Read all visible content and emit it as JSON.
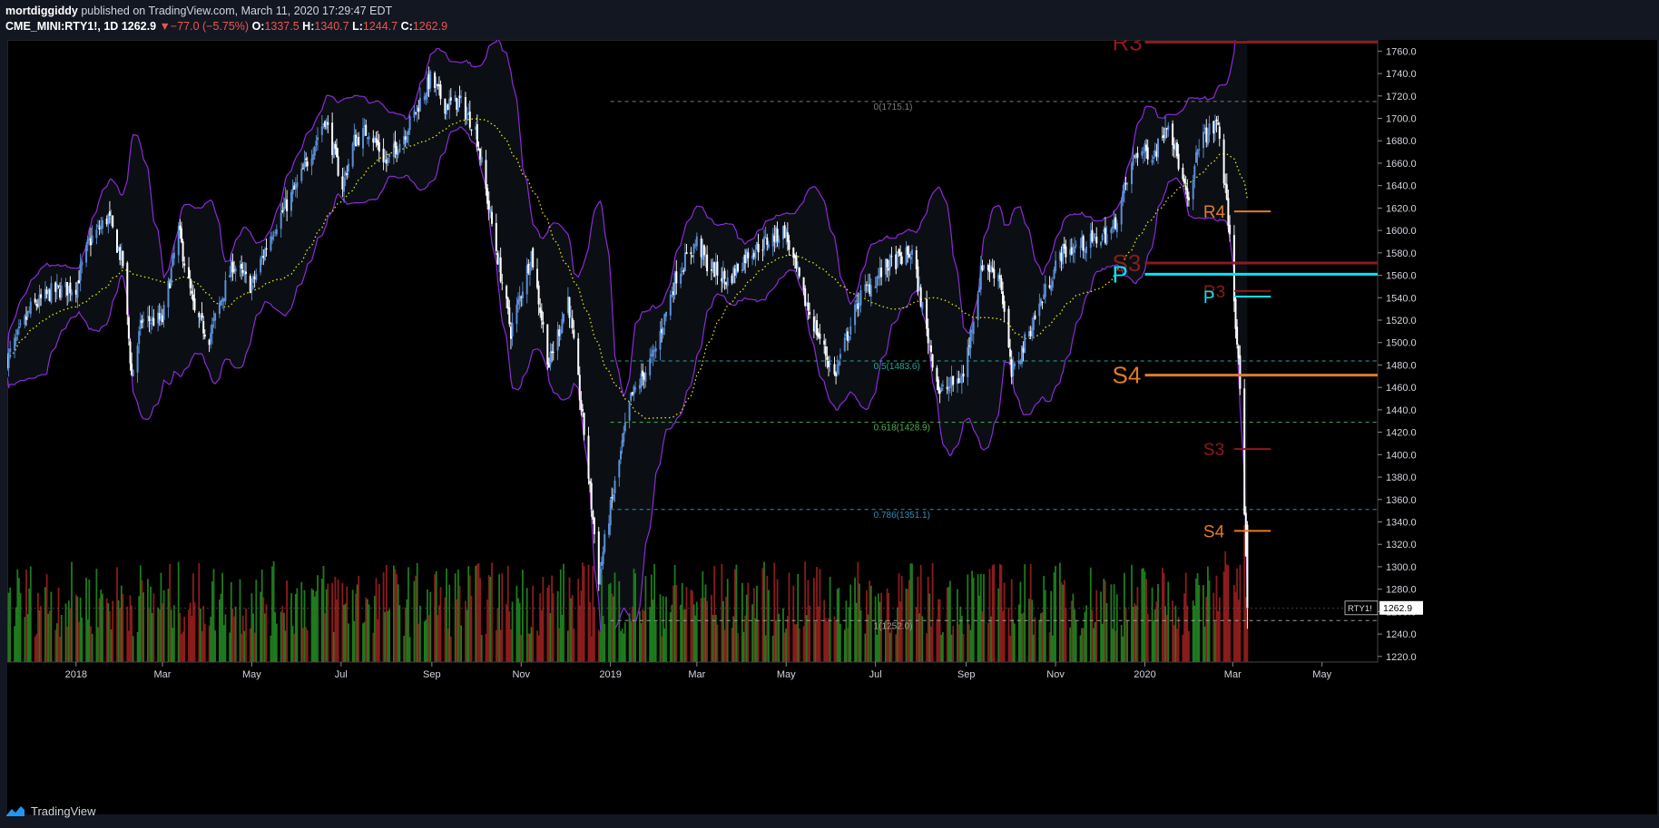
{
  "header": {
    "author": "mortdiggiddy",
    "published": "published on TradingView.com, March 11, 2020 17:29:47 EDT",
    "symbol": "CME_MINI:RTY1!, 1D",
    "last": "1262.9",
    "change_arrow": "▼",
    "change": "−77.0 (−5.75%)",
    "o_label": "O:",
    "o": "1337.5",
    "h_label": "H:",
    "h": "1340.7",
    "l_label": "L:",
    "l": "1244.7",
    "c_label": "C:",
    "c": "1262.9"
  },
  "footer": {
    "brand": "TradingView"
  },
  "colors": {
    "background": "#000000",
    "candle_up": "#5b8fd6",
    "candle_down": "#ffffff",
    "band": "#8b2bd6",
    "ma": "#e6e600",
    "volume_up": "#1e7a1e",
    "volume_down": "#8b1c1c",
    "fib_0": "#7a7a7a",
    "fib_05": "#26a69a",
    "fib_0618": "#4caf50",
    "fib_0786": "#2f8fb8",
    "fib_1": "#9e9e9e",
    "r3": "#8b1a1a",
    "r4": "#e07b28",
    "s3": "#8b1a1a",
    "s4": "#e07b28",
    "pivot": "#00e5ff"
  },
  "chart_data": {
    "type": "candlestick",
    "symbol": "RTY1!",
    "price_axis": {
      "ticks": [
        "1760.0",
        "1740.0",
        "1720.0",
        "1700.0",
        "1680.0",
        "1660.0",
        "1640.0",
        "1620.0",
        "1600.0",
        "1580.0",
        "1560.0",
        "1540.0",
        "1520.0",
        "1500.0",
        "1480.0",
        "1460.0",
        "1440.0",
        "1420.0",
        "1400.0",
        "1380.0",
        "1360.0",
        "1340.0",
        "1320.0",
        "1300.0",
        "1280.0",
        "1260.0",
        "1240.0",
        "1220.0"
      ],
      "ylim": [
        1215,
        1770
      ]
    },
    "time_axis": {
      "ticks": [
        {
          "date": "2018-01-01",
          "label": "2018"
        },
        {
          "date": "2018-03-01",
          "label": "Mar"
        },
        {
          "date": "2018-05-01",
          "label": "May"
        },
        {
          "date": "2018-07-01",
          "label": "Jul"
        },
        {
          "date": "2018-09-01",
          "label": "Sep"
        },
        {
          "date": "2018-11-01",
          "label": "Nov"
        },
        {
          "date": "2019-01-01",
          "label": "2019"
        },
        {
          "date": "2019-03-01",
          "label": "Mar"
        },
        {
          "date": "2019-05-01",
          "label": "May"
        },
        {
          "date": "2019-07-01",
          "label": "Jul"
        },
        {
          "date": "2019-09-01",
          "label": "Sep"
        },
        {
          "date": "2019-11-01",
          "label": "Nov"
        },
        {
          "date": "2020-01-01",
          "label": "2020"
        },
        {
          "date": "2020-03-01",
          "label": "Mar"
        },
        {
          "date": "2020-05-01",
          "label": "May"
        }
      ],
      "xlim": [
        "2017-11-15",
        "2020-06-08"
      ]
    },
    "last_price": {
      "label": "RTY1!",
      "value": "1262.9",
      "y": 1262.9
    },
    "price_path": [
      [
        "2017-11-15",
        1485
      ],
      [
        "2017-12-01",
        1530
      ],
      [
        "2017-12-15",
        1545
      ],
      [
        "2018-01-01",
        1550
      ],
      [
        "2018-01-10",
        1590
      ],
      [
        "2018-01-23",
        1612
      ],
      [
        "2018-02-02",
        1570
      ],
      [
        "2018-02-08",
        1470
      ],
      [
        "2018-02-15",
        1520
      ],
      [
        "2018-03-01",
        1520
      ],
      [
        "2018-03-12",
        1600
      ],
      [
        "2018-03-23",
        1525
      ],
      [
        "2018-04-02",
        1505
      ],
      [
        "2018-04-18",
        1570
      ],
      [
        "2018-05-01",
        1550
      ],
      [
        "2018-05-15",
        1600
      ],
      [
        "2018-06-01",
        1640
      ],
      [
        "2018-06-20",
        1700
      ],
      [
        "2018-07-02",
        1640
      ],
      [
        "2018-07-10",
        1680
      ],
      [
        "2018-07-20",
        1690
      ],
      [
        "2018-08-01",
        1660
      ],
      [
        "2018-08-15",
        1690
      ],
      [
        "2018-08-31",
        1735
      ],
      [
        "2018-09-10",
        1712
      ],
      [
        "2018-09-20",
        1715
      ],
      [
        "2018-10-01",
        1690
      ],
      [
        "2018-10-10",
        1620
      ],
      [
        "2018-10-25",
        1510
      ],
      [
        "2018-11-02",
        1550
      ],
      [
        "2018-11-08",
        1580
      ],
      [
        "2018-11-20",
        1480
      ],
      [
        "2018-12-03",
        1540
      ],
      [
        "2018-12-14",
        1420
      ],
      [
        "2018-12-24",
        1290
      ],
      [
        "2018-12-31",
        1345
      ],
      [
        "2019-01-15",
        1450
      ],
      [
        "2019-01-31",
        1490
      ],
      [
        "2019-02-15",
        1560
      ],
      [
        "2019-03-01",
        1590
      ],
      [
        "2019-03-08",
        1570
      ],
      [
        "2019-03-22",
        1555
      ],
      [
        "2019-04-05",
        1580
      ],
      [
        "2019-04-30",
        1600
      ],
      [
        "2019-05-13",
        1540
      ],
      [
        "2019-06-03",
        1470
      ],
      [
        "2019-06-20",
        1540
      ],
      [
        "2019-07-10",
        1570
      ],
      [
        "2019-07-26",
        1580
      ],
      [
        "2019-08-05",
        1510
      ],
      [
        "2019-08-14",
        1455
      ],
      [
        "2019-08-30",
        1470
      ],
      [
        "2019-09-12",
        1570
      ],
      [
        "2019-09-24",
        1560
      ],
      [
        "2019-10-02",
        1470
      ],
      [
        "2019-10-20",
        1530
      ],
      [
        "2019-11-05",
        1580
      ],
      [
        "2019-11-25",
        1590
      ],
      [
        "2019-12-10",
        1600
      ],
      [
        "2019-12-26",
        1670
      ],
      [
        "2020-01-08",
        1670
      ],
      [
        "2020-01-17",
        1700
      ],
      [
        "2020-01-31",
        1620
      ],
      [
        "2020-02-07",
        1680
      ],
      [
        "2020-02-20",
        1695
      ],
      [
        "2020-02-27",
        1610
      ],
      [
        "2020-03-02",
        1540
      ],
      [
        "2020-03-06",
        1460
      ],
      [
        "2020-03-09",
        1340
      ],
      [
        "2020-03-11",
        1262.9
      ]
    ],
    "fib_levels": [
      {
        "label": "0(1715.1)",
        "value": 1715.1,
        "start": "2019-01-01"
      },
      {
        "label": "0.5(1483.6)",
        "value": 1483.6,
        "start": "2019-01-01"
      },
      {
        "label": "0.618(1428.9)",
        "value": 1428.9,
        "start": "2019-01-01"
      },
      {
        "label": "0.786(1351.1)",
        "value": 1351.1,
        "start": "2019-01-01"
      },
      {
        "label": "1(1252.0)",
        "value": 1252.0,
        "start": "2019-01-01"
      }
    ],
    "pivot_levels": [
      {
        "label": "R3",
        "value": 1768,
        "start": "2020-01-01",
        "end": "2020-06-08",
        "size": "large",
        "color_key": "r3"
      },
      {
        "label": "S3",
        "value": 1571,
        "start": "2020-01-01",
        "end": "2020-06-08",
        "size": "large",
        "color_key": "s3"
      },
      {
        "label": "P",
        "value": 1561,
        "start": "2020-01-01",
        "end": "2020-06-08",
        "size": "large",
        "color_key": "pivot"
      },
      {
        "label": "S4",
        "value": 1471,
        "start": "2020-01-01",
        "end": "2020-06-08",
        "size": "large",
        "color_key": "s4"
      },
      {
        "label": "R4",
        "value": 1617,
        "start": "2020-03-02",
        "end": "2020-03-27",
        "size": "small",
        "color_key": "r4"
      },
      {
        "label": "R3",
        "value": 1546,
        "start": "2020-03-02",
        "end": "2020-03-27",
        "size": "small",
        "color_key": "r3"
      },
      {
        "label": "P",
        "value": 1541,
        "start": "2020-03-02",
        "end": "2020-03-27",
        "size": "small",
        "color_key": "pivot"
      },
      {
        "label": "S3",
        "value": 1405,
        "start": "2020-03-02",
        "end": "2020-03-27",
        "size": "small",
        "color_key": "s3"
      },
      {
        "label": "S4",
        "value": 1332,
        "start": "2020-03-02",
        "end": "2020-03-27",
        "size": "small",
        "color_key": "s4"
      }
    ]
  }
}
